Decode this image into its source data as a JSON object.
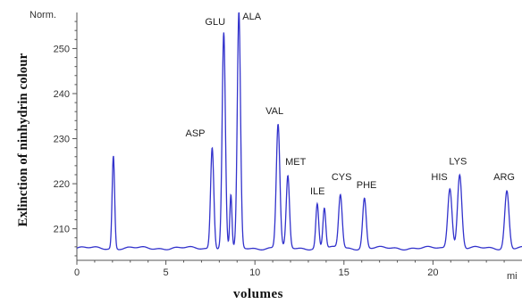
{
  "chart_data": {
    "type": "line",
    "ylabel": "Exlinction of ninhydrin colour",
    "xlabel": "volumes",
    "y_unit_label": "Norm.",
    "x_unit_label": "mi",
    "xlim": [
      0,
      25
    ],
    "ylim": [
      203,
      258
    ],
    "x_ticks": [
      0,
      5,
      10,
      15,
      20
    ],
    "y_ticks": [
      210,
      220,
      230,
      240,
      250
    ],
    "baseline": 205.7,
    "line_color": "#3333cc",
    "peaks": [
      {
        "name": "",
        "x": 2.05,
        "y": 226.3,
        "w": 0.07
      },
      {
        "name": "ASP",
        "x": 7.6,
        "y": 228.3,
        "w": 0.09
      },
      {
        "name": "GLU",
        "x": 8.25,
        "y": 253.4,
        "w": 0.09
      },
      {
        "name": "",
        "x": 8.65,
        "y": 217.5,
        "w": 0.06
      },
      {
        "name": "ALA",
        "x": 9.1,
        "y": 257.8,
        "w": 0.09
      },
      {
        "name": "VAL",
        "x": 11.3,
        "y": 233.2,
        "w": 0.1
      },
      {
        "name": "MET",
        "x": 11.85,
        "y": 221.5,
        "w": 0.09
      },
      {
        "name": "ILE",
        "x": 13.5,
        "y": 215.5,
        "w": 0.08
      },
      {
        "name": "",
        "x": 13.9,
        "y": 214.6,
        "w": 0.08
      },
      {
        "name": "CYS",
        "x": 14.8,
        "y": 217.6,
        "w": 0.1
      },
      {
        "name": "PHE",
        "x": 16.15,
        "y": 216.8,
        "w": 0.1
      },
      {
        "name": "HIS",
        "x": 20.95,
        "y": 219.2,
        "w": 0.12
      },
      {
        "name": "LYS",
        "x": 21.5,
        "y": 222.0,
        "w": 0.12
      },
      {
        "name": "ARG",
        "x": 24.15,
        "y": 218.5,
        "w": 0.12
      }
    ],
    "labels": [
      {
        "text": "ASP",
        "x": 6.1,
        "y": 230.5
      },
      {
        "text": "GLU",
        "x": 7.2,
        "y": 255.2
      },
      {
        "text": "ALA",
        "x": 9.3,
        "y": 256.4
      },
      {
        "text": "VAL",
        "x": 10.6,
        "y": 235.4
      },
      {
        "text": "MET",
        "x": 11.7,
        "y": 224.2
      },
      {
        "text": "ILE",
        "x": 13.1,
        "y": 217.6
      },
      {
        "text": "CYS",
        "x": 14.3,
        "y": 220.8
      },
      {
        "text": "PHE",
        "x": 15.7,
        "y": 219.0
      },
      {
        "text": "HIS",
        "x": 19.9,
        "y": 220.8
      },
      {
        "text": "LYS",
        "x": 20.9,
        "y": 224.3
      },
      {
        "text": "ARG",
        "x": 23.4,
        "y": 220.8
      }
    ]
  }
}
